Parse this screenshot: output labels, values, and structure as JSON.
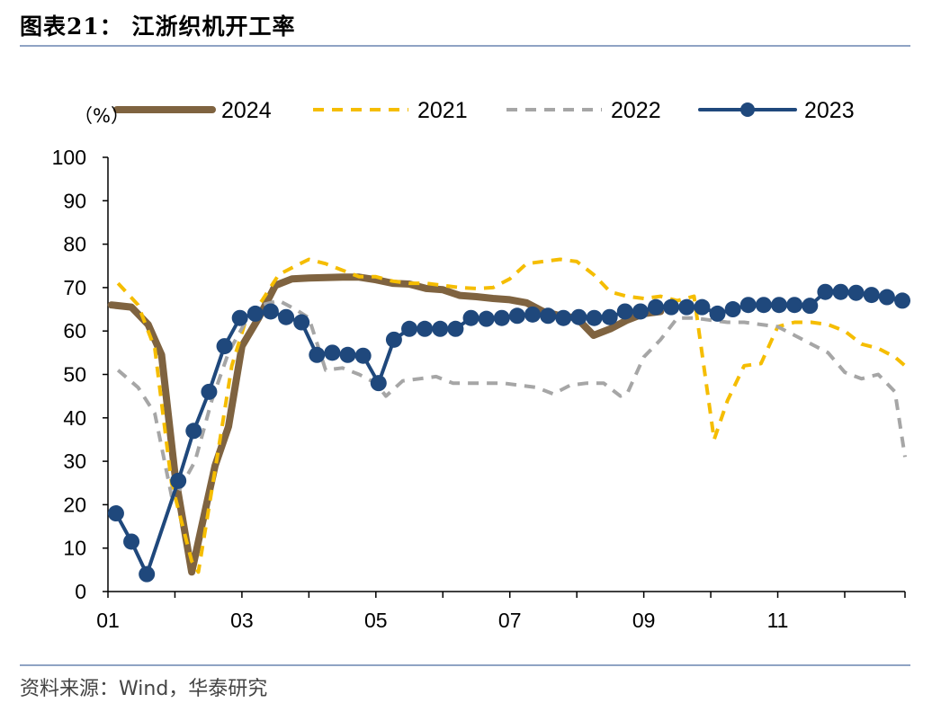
{
  "title": "图表21： 江浙织机开工率",
  "source": "资料来源：Wind，华泰研究",
  "chart_data": {
    "type": "line",
    "unit_label": "（%）",
    "ylim": [
      0,
      100
    ],
    "yticks": [
      0,
      10,
      20,
      30,
      40,
      50,
      60,
      70,
      80,
      90,
      100
    ],
    "xlim": [
      1,
      12.9
    ],
    "xticks": [
      {
        "value": 1,
        "label": "01"
      },
      {
        "value": 3,
        "label": "03"
      },
      {
        "value": 5,
        "label": "05"
      },
      {
        "value": 7,
        "label": "07"
      },
      {
        "value": 9,
        "label": "09"
      },
      {
        "value": 11,
        "label": "11"
      }
    ],
    "legend_position": "top",
    "series": [
      {
        "name": "2024",
        "color": "#7f6340",
        "style": "solid",
        "width": 8,
        "markers": false,
        "x": [
          1.05,
          1.35,
          1.6,
          1.8,
          2.0,
          2.25,
          2.4,
          2.6,
          2.8,
          3.0,
          3.25,
          3.5,
          3.75,
          4.0,
          4.25,
          4.5,
          4.75,
          5.0,
          5.25,
          5.5,
          5.75,
          6.0,
          6.25,
          6.5,
          6.75,
          7.0,
          7.25,
          7.5,
          7.75,
          8.0,
          8.25,
          8.5,
          8.75,
          9.0,
          9.25
        ],
        "y": [
          66,
          65.5,
          61.5,
          54.5,
          27,
          4.5,
          15,
          29,
          38,
          56.5,
          63,
          70.5,
          72,
          72.2,
          72.3,
          72.4,
          72.4,
          71.8,
          71,
          70.8,
          69.8,
          69.5,
          68.2,
          67.9,
          67.5,
          67.2,
          66.5,
          64.5,
          63.5,
          63,
          59,
          60.5,
          62.5,
          64,
          64.5
        ]
      },
      {
        "name": "2021",
        "color": "#f5bd00",
        "style": "dashed",
        "width": 4,
        "markers": false,
        "x": [
          1.15,
          1.45,
          1.7,
          1.95,
          2.25,
          2.35,
          2.6,
          2.85,
          3.05,
          3.3,
          3.55,
          3.8,
          4.0,
          4.25,
          4.5,
          4.75,
          5.0,
          5.25,
          5.5,
          5.75,
          6.0,
          6.25,
          6.5,
          6.75,
          7.0,
          7.25,
          7.5,
          7.75,
          8.0,
          8.25,
          8.5,
          8.75,
          9.0,
          9.25,
          9.5,
          9.75,
          10.05,
          10.25,
          10.5,
          10.75,
          11.0,
          11.25,
          11.5,
          11.75,
          12.0,
          12.25,
          12.5,
          12.75,
          12.9
        ],
        "y": [
          71,
          66,
          56,
          25,
          7,
          4.5,
          28,
          52,
          62,
          67,
          73,
          75,
          76.5,
          75.5,
          74,
          72.5,
          72.5,
          71.5,
          71,
          71,
          70.5,
          70,
          69.8,
          70,
          72,
          75.5,
          76,
          76.5,
          76,
          73,
          69,
          68,
          67.5,
          68,
          67,
          68,
          35,
          44,
          52,
          52.5,
          61,
          62,
          62,
          61.5,
          60,
          57,
          56,
          54,
          52
        ]
      },
      {
        "name": "2022",
        "color": "#a6a6a6",
        "style": "dashed",
        "width": 4,
        "markers": false,
        "x": [
          1.15,
          1.45,
          1.7,
          1.95,
          2.05,
          2.3,
          2.55,
          2.8,
          3.05,
          3.3,
          3.55,
          3.8,
          4.0,
          4.25,
          4.5,
          4.75,
          5.0,
          5.15,
          5.4,
          5.65,
          5.9,
          6.15,
          6.4,
          6.65,
          6.9,
          7.15,
          7.4,
          7.65,
          7.9,
          8.15,
          8.4,
          8.65,
          8.75,
          9.0,
          9.25,
          9.5,
          9.75,
          10.0,
          10.25,
          10.5,
          10.75,
          11.0,
          11.25,
          11.5,
          11.75,
          12.0,
          12.25,
          12.5,
          12.75,
          12.9
        ],
        "y": [
          51,
          47,
          41,
          22,
          23,
          30,
          44,
          55,
          62,
          66,
          67,
          65,
          63,
          51,
          51.5,
          50,
          48,
          45,
          48.5,
          49,
          49.5,
          48,
          48,
          48,
          48,
          47.5,
          47,
          45.5,
          47.5,
          48,
          48,
          45,
          45.5,
          54,
          58,
          63,
          63,
          62.5,
          62,
          62,
          61.5,
          61,
          59,
          57,
          55,
          50.5,
          49,
          50,
          46,
          31
        ]
      },
      {
        "name": "2023",
        "color": "#1f487c",
        "style": "solid",
        "width": 4,
        "markers": true,
        "x": [
          1.12,
          1.35,
          1.58,
          2.05,
          2.28,
          2.51,
          2.74,
          2.97,
          3.2,
          3.43,
          3.66,
          3.89,
          4.12,
          4.35,
          4.58,
          4.81,
          5.04,
          5.27,
          5.5,
          5.73,
          5.96,
          6.19,
          6.42,
          6.65,
          6.88,
          7.11,
          7.34,
          7.57,
          7.8,
          8.03,
          8.26,
          8.49,
          8.72,
          8.95,
          9.18,
          9.41,
          9.64,
          9.87,
          10.1,
          10.33,
          10.56,
          10.79,
          11.02,
          11.25,
          11.48,
          11.71,
          11.94,
          12.17,
          12.4,
          12.63,
          12.86
        ],
        "y": [
          18,
          11.5,
          4,
          25.5,
          37,
          46,
          56.5,
          63,
          64,
          64.5,
          63.2,
          62,
          54.5,
          55,
          54.5,
          54.3,
          48,
          58,
          60.5,
          60.5,
          60.5,
          60.5,
          63,
          62.8,
          63,
          63.5,
          63.8,
          63.5,
          63,
          63.2,
          63,
          63.2,
          64.5,
          64.5,
          65.5,
          65.5,
          65.5,
          65.5,
          64,
          65,
          66,
          66,
          66,
          66,
          65.8,
          69,
          69,
          68.8,
          68.3,
          67.8,
          67
        ]
      }
    ]
  }
}
